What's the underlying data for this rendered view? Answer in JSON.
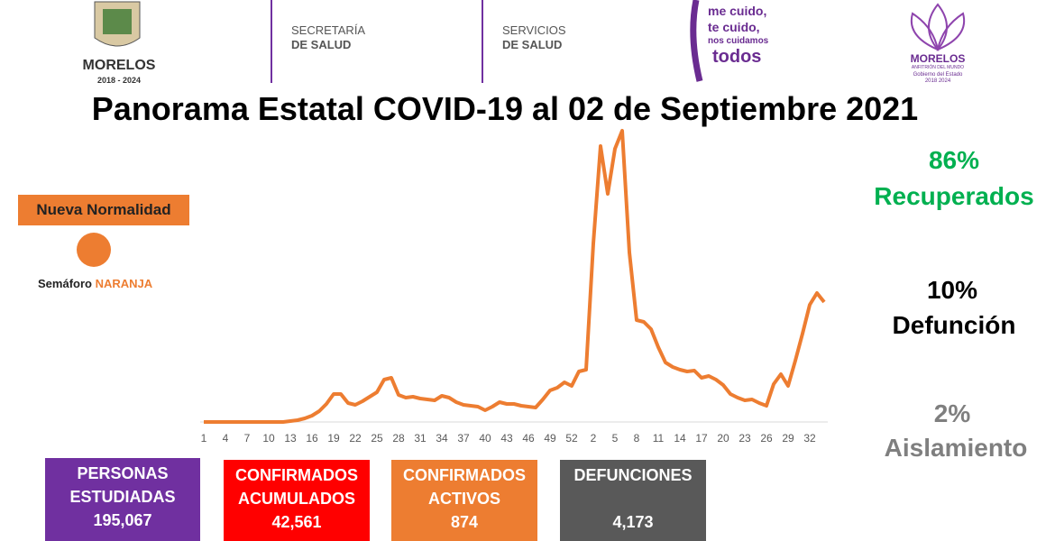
{
  "header": {
    "state_logo": {
      "name": "MORELOS",
      "years": "2018 - 2024"
    },
    "secretaria": [
      "SECRETARÍA",
      "DE SALUD"
    ],
    "servicios": [
      "SERVICIOS",
      "DE SALUD"
    ],
    "slogan": [
      "me cuido,",
      "te cuido,",
      "nos cuidamos",
      "todos"
    ],
    "right_logo": {
      "name": "MORELOS",
      "tagline": "ANFITRIÓN DEL MUNDO",
      "sub": "Gobierno del Estado",
      "years": "2018 2024"
    }
  },
  "title": "Panorama Estatal COVID-19 al 02 de Septiembre 2021",
  "status": {
    "label": "Nueva Normalidad",
    "semaforo": "Semáforo",
    "color_name": "NARANJA"
  },
  "rates": [
    {
      "value": "86%",
      "label": "Recuperados"
    },
    {
      "value": "10%",
      "label": "Defunción"
    },
    {
      "value": "2%",
      "label": "Aislamiento"
    }
  ],
  "stats": [
    {
      "title_lines": [
        "PERSONAS",
        "ESTUDIADAS"
      ],
      "value": "195,067"
    },
    {
      "title_lines": [
        "CONFIRMADOS",
        "ACUMULADOS"
      ],
      "value": "42,561"
    },
    {
      "title_lines": [
        "CONFIRMADOS",
        "ACTIVOS"
      ],
      "value": "874"
    },
    {
      "title_lines": [
        "DEFUNCIONES"
      ],
      "value": "4,173"
    }
  ],
  "chart_data": {
    "type": "line",
    "color": "#ed7d31",
    "categories": [
      1,
      null,
      null,
      4,
      null,
      null,
      7,
      null,
      null,
      10,
      null,
      null,
      13,
      null,
      null,
      16,
      null,
      null,
      19,
      null,
      null,
      22,
      null,
      null,
      25,
      null,
      null,
      28,
      null,
      null,
      31,
      null,
      null,
      34,
      null,
      null,
      37,
      null,
      null,
      40,
      null,
      null,
      43,
      null,
      null,
      46,
      null,
      null,
      49,
      null,
      null,
      52,
      null,
      null,
      2,
      null,
      null,
      5,
      null,
      null,
      8,
      null,
      null,
      11,
      null,
      null,
      14,
      null,
      null,
      17,
      null,
      null,
      20,
      null,
      null,
      23,
      null,
      null,
      26,
      null,
      null,
      29,
      null,
      null,
      32,
      null,
      null
    ],
    "values": [
      0,
      0,
      0,
      0,
      0,
      0,
      0,
      0,
      0,
      0,
      0,
      0,
      1,
      2,
      4,
      7,
      12,
      20,
      31,
      31,
      21,
      19,
      23,
      28,
      33,
      47,
      49,
      30,
      27,
      28,
      26,
      25,
      24,
      29,
      27,
      22,
      19,
      18,
      17,
      13,
      17,
      22,
      20,
      20,
      18,
      17,
      16,
      25,
      35,
      38,
      44,
      40,
      56,
      58,
      198,
      306,
      253,
      303,
      323,
      188,
      113,
      111,
      103,
      83,
      66,
      61,
      58,
      56,
      57,
      49,
      51,
      47,
      41,
      31,
      27,
      24,
      25,
      21,
      18,
      42,
      53,
      40,
      68,
      98,
      130,
      143,
      133
    ]
  }
}
